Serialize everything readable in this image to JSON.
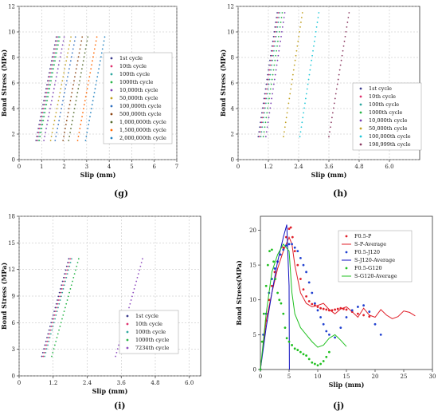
{
  "panels": [
    {
      "id": "g",
      "label": "(g)",
      "type": "line",
      "xlabel": "Slip (mm)",
      "ylabel": "Bond Stress (MPa)",
      "xlim": [
        0,
        7
      ],
      "ylim": [
        0,
        12
      ],
      "xticks": [
        "0",
        "1",
        "2",
        "3",
        "4",
        "5",
        "6",
        "7"
      ],
      "yticks": [
        "0",
        "2",
        "4",
        "6",
        "8",
        "10",
        "12"
      ],
      "xtick_values": [
        0,
        1,
        2,
        3,
        4,
        5,
        6,
        7
      ],
      "ytick_values": [
        0,
        2,
        4,
        6,
        8,
        10,
        12
      ],
      "grid": true,
      "legend_position": "right",
      "markers_only": true,
      "series": [
        {
          "name": "1st cycle",
          "color": "#3a3a8c",
          "x": [
            0.75,
            1.65
          ],
          "y": [
            1.5,
            9.6
          ]
        },
        {
          "name": "10th cycle",
          "color": "#e0306e",
          "x": [
            0.8,
            1.7
          ],
          "y": [
            1.5,
            9.6
          ]
        },
        {
          "name": "100th cycle",
          "color": "#2fa8a0",
          "x": [
            0.85,
            1.75
          ],
          "y": [
            1.5,
            9.6
          ]
        },
        {
          "name": "1000th cycle",
          "color": "#2ab54a",
          "x": [
            0.9,
            1.8
          ],
          "y": [
            1.5,
            9.6
          ]
        },
        {
          "name": "10,000th cycle",
          "color": "#7a3fb0",
          "x": [
            1.1,
            2.0
          ],
          "y": [
            1.5,
            9.6
          ]
        },
        {
          "name": "50,000th cycle",
          "color": "#c0a020",
          "x": [
            1.4,
            2.3
          ],
          "y": [
            1.5,
            9.6
          ]
        },
        {
          "name": "100,000th cycle",
          "color": "#3070c0",
          "x": [
            1.6,
            2.5
          ],
          "y": [
            1.5,
            9.6
          ]
        },
        {
          "name": "500,000th cycle",
          "color": "#8b4513",
          "x": [
            1.95,
            2.8
          ],
          "y": [
            1.5,
            9.6
          ]
        },
        {
          "name": "1,000,000th cycle",
          "color": "#556b2f",
          "x": [
            2.2,
            3.05
          ],
          "y": [
            1.5,
            9.6
          ]
        },
        {
          "name": "1,500,000th cycle",
          "color": "#ff6600",
          "x": [
            2.6,
            3.45
          ],
          "y": [
            1.5,
            9.6
          ]
        },
        {
          "name": "2,000,000th cycle",
          "color": "#2080c0",
          "x": [
            2.95,
            3.8
          ],
          "y": [
            1.5,
            9.6
          ]
        }
      ]
    },
    {
      "id": "h",
      "label": "(h)",
      "type": "line",
      "xlabel": "Slip (mm)",
      "ylabel": "Bond Stress (MPa)",
      "xlim": [
        0,
        7.2
      ],
      "ylim": [
        0,
        12
      ],
      "xticks": [
        "0",
        "1.2",
        "2.4",
        "3.6",
        "4.8",
        "6.0"
      ],
      "yticks": [
        "0",
        "2",
        "4",
        "6",
        "8",
        "10",
        "12"
      ],
      "xtick_values": [
        0,
        1.2,
        2.4,
        3.6,
        4.8,
        6.0
      ],
      "ytick_values": [
        0,
        2,
        4,
        6,
        8,
        10,
        12
      ],
      "grid": true,
      "legend_position": "right",
      "markers_only": true,
      "series": [
        {
          "name": "1st cycle",
          "color": "#3a3a8c",
          "x": [
            0.8,
            1.55
          ],
          "y": [
            1.8,
            11.5
          ]
        },
        {
          "name": "10th cycle",
          "color": "#e0306e",
          "x": [
            0.85,
            1.6
          ],
          "y": [
            1.8,
            11.5
          ]
        },
        {
          "name": "100th cycle",
          "color": "#2fa8a0",
          "x": [
            0.9,
            1.65
          ],
          "y": [
            1.8,
            11.5
          ]
        },
        {
          "name": "1000th cycle",
          "color": "#2ab54a",
          "x": [
            1.0,
            1.75
          ],
          "y": [
            1.8,
            11.5
          ]
        },
        {
          "name": "10,000th cycle",
          "color": "#7a3fb0",
          "x": [
            1.1,
            1.85
          ],
          "y": [
            1.8,
            11.5
          ]
        },
        {
          "name": "50,000th cycle",
          "color": "#c0a020",
          "x": [
            1.8,
            2.55
          ],
          "y": [
            1.8,
            11.5
          ]
        },
        {
          "name": "100,000th cycle",
          "color": "#20c8d8",
          "x": [
            2.45,
            3.2
          ],
          "y": [
            1.8,
            11.5
          ]
        },
        {
          "name": "198,999th cycle",
          "color": "#8b3a62",
          "x": [
            3.6,
            4.4
          ],
          "y": [
            1.8,
            11.5
          ]
        }
      ]
    },
    {
      "id": "i",
      "label": "(i)",
      "type": "line",
      "xlabel": "Slip (mm)",
      "ylabel": "Bond Stress (MPa)",
      "xlim": [
        0,
        6.4
      ],
      "ylim": [
        0,
        18
      ],
      "xticks": [
        "0",
        "1.2",
        "2.4",
        "3.6",
        "4.8",
        "6.0"
      ],
      "yticks": [
        "0",
        "3",
        "6",
        "9",
        "12",
        "15",
        "18"
      ],
      "xtick_values": [
        0,
        1.2,
        2.4,
        3.6,
        4.8,
        6.0
      ],
      "ytick_values": [
        0,
        3,
        6,
        9,
        12,
        15,
        18
      ],
      "grid": true,
      "legend_position": "bottom-right",
      "markers_only": true,
      "series": [
        {
          "name": "1st cycle",
          "color": "#3a3a8c",
          "x": [
            0.8,
            1.75
          ],
          "y": [
            2.2,
            13.2
          ]
        },
        {
          "name": "10th cycle",
          "color": "#e0306e",
          "x": [
            0.85,
            1.8
          ],
          "y": [
            2.2,
            13.2
          ]
        },
        {
          "name": "100th cycle",
          "color": "#2fa8a0",
          "x": [
            0.9,
            1.85
          ],
          "y": [
            2.2,
            13.2
          ]
        },
        {
          "name": "1000th cycle",
          "color": "#2ab54a",
          "x": [
            1.15,
            2.1
          ],
          "y": [
            2.2,
            13.2
          ]
        },
        {
          "name": "7234th cycle",
          "color": "#9050c0",
          "x": [
            3.4,
            4.35
          ],
          "y": [
            2.2,
            13.2
          ]
        }
      ]
    },
    {
      "id": "j",
      "label": "(j)",
      "type": "line",
      "xlabel": "Slip (mm)",
      "ylabel": "Bond Stress(MPa)",
      "xlim": [
        0,
        30
      ],
      "ylim": [
        0,
        22
      ],
      "xticks": [
        "0",
        "5",
        "10",
        "15",
        "20",
        "25",
        "30"
      ],
      "yticks": [
        "0",
        "5",
        "10",
        "15",
        "20"
      ],
      "xtick_values": [
        0,
        5,
        10,
        15,
        20,
        25,
        30
      ],
      "ytick_values": [
        0,
        5,
        10,
        15,
        20
      ],
      "grid": false,
      "legend_position": "top-right",
      "series": [
        {
          "name": "F0.5-P",
          "color": "#e0202a",
          "style": "dots",
          "x": [
            0,
            0.5,
            1,
            1.5,
            2,
            2.5,
            3,
            3.5,
            4,
            4.5,
            5,
            5.3,
            5.6,
            6,
            6.5,
            7,
            7.5,
            8,
            8.5,
            9,
            9.5,
            10,
            10.5,
            11,
            11.5,
            12,
            12.5,
            13,
            13.5,
            14,
            14.5,
            15,
            16,
            17,
            18,
            19
          ],
          "y": [
            0,
            4,
            7,
            10,
            12,
            14,
            15.5,
            16.5,
            17.5,
            19,
            20.2,
            20.4,
            19,
            17,
            15,
            13,
            11.5,
            10.5,
            9.8,
            9.4,
            9.2,
            9.0,
            8.8,
            8.7,
            8.6,
            8.5,
            8.5,
            8.6,
            8.7,
            8.8,
            8.7,
            8.6,
            8.3,
            8.0,
            7.8,
            7.6
          ]
        },
        {
          "name": "S-P-Average",
          "color": "#e0202a",
          "style": "line",
          "x": [
            0,
            1,
            2,
            3,
            4,
            5,
            5.5,
            6,
            7,
            8,
            9,
            10,
            11,
            12,
            13,
            14,
            15,
            16,
            17,
            18,
            19,
            20,
            21,
            22,
            23,
            24,
            25,
            26,
            27
          ],
          "y": [
            0,
            7,
            11,
            14.5,
            17,
            19,
            18,
            15,
            11,
            9.5,
            9,
            9.2,
            9.5,
            8.6,
            8,
            8.7,
            9,
            8.3,
            7.5,
            8.8,
            7.8,
            7.5,
            8.6,
            7.8,
            7.3,
            7.6,
            8.4,
            8.2,
            7.7
          ]
        },
        {
          "name": "F0.5-J120",
          "color": "#2040d0",
          "style": "dots",
          "x": [
            0,
            0.5,
            1,
            1.5,
            2,
            2.5,
            3,
            3.5,
            4,
            4.5,
            5,
            5.5,
            6,
            6.5,
            7,
            7.5,
            8,
            8.5,
            9,
            9.5,
            10,
            10.5,
            11,
            11.5,
            12,
            13,
            14,
            15,
            16,
            17,
            18,
            19,
            20,
            21
          ],
          "y": [
            0,
            5,
            8,
            11,
            13,
            14.5,
            15.5,
            16.5,
            17.2,
            17.8,
            18,
            18,
            17.5,
            17,
            16,
            15,
            14,
            12.5,
            11,
            9.5,
            8.5,
            7.5,
            6.5,
            5.5,
            5,
            4.6,
            6,
            7.5,
            8.5,
            9,
            9.2,
            8.3,
            6.5,
            5
          ]
        },
        {
          "name": "S-J120-Average",
          "color": "#1010c0",
          "style": "line",
          "x": [
            0,
            1,
            2,
            3,
            4,
            4.6,
            5,
            5.05
          ],
          "y": [
            0,
            6,
            11,
            15.5,
            19,
            20.8,
            12,
            0
          ]
        },
        {
          "name": "F0.5-G120",
          "color": "#20c020",
          "style": "dots",
          "x": [
            0,
            0.3,
            0.6,
            1,
            1.3,
            1.6,
            2,
            2.3,
            2.6,
            3,
            3.3,
            3.6,
            4,
            4.3,
            4.6,
            5,
            5.5,
            6,
            6.5,
            7,
            7.5,
            8,
            8.5,
            9,
            9.5,
            10,
            10.5,
            11,
            11.5,
            12
          ],
          "y": [
            0,
            4,
            8,
            12,
            15,
            17,
            17.2,
            15.5,
            13,
            11,
            10,
            9.5,
            8,
            6,
            4.5,
            4,
            3.5,
            3,
            2.8,
            2.5,
            2.2,
            2,
            1.5,
            1,
            0.8,
            0.6,
            0.8,
            1.2,
            1.8,
            2.5
          ]
        },
        {
          "name": "S-G120-Average",
          "color": "#20c020",
          "style": "line",
          "x": [
            0,
            1,
            2,
            3,
            4,
            5,
            5.5,
            6,
            7,
            8,
            9,
            10,
            11,
            12,
            13,
            14,
            15
          ],
          "y": [
            0,
            8,
            14,
            16.5,
            18,
            17,
            11,
            8,
            6,
            5,
            4,
            3.2,
            3.5,
            4.5,
            5,
            4.2,
            3.3
          ]
        }
      ]
    }
  ]
}
